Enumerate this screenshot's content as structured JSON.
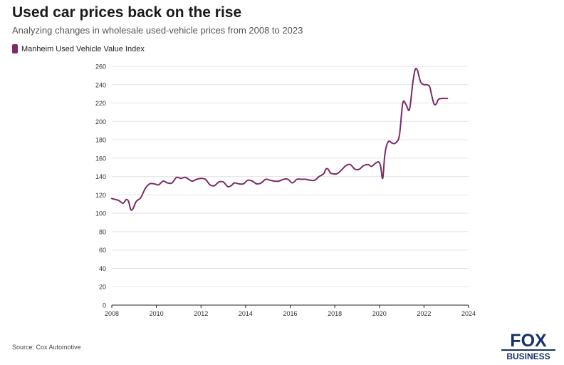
{
  "header": {
    "title": "Used car prices back on the rise",
    "subtitle": "Analyzing changes in wholesale used-vehicle prices from 2008 to 2023"
  },
  "legend": {
    "label": "Manheim Used Vehicle Value Index"
  },
  "footer": {
    "source": "Source: Cox Automotive"
  },
  "logo": {
    "top": "FOX",
    "bottom": "BUSINESS",
    "color": "#16306b"
  },
  "colors": {
    "series": "#7d2a66",
    "grid": "#e3e3e3",
    "axis": "#222222"
  },
  "chart_data": {
    "type": "line",
    "title": "Used car prices back on the rise",
    "xlabel": "",
    "ylabel": "",
    "xlim": [
      2008,
      2024
    ],
    "ylim": [
      0,
      260
    ],
    "xticks": [
      2008,
      2010,
      2012,
      2014,
      2016,
      2018,
      2020,
      2022,
      2024
    ],
    "yticks": [
      0,
      20,
      40,
      60,
      80,
      100,
      120,
      140,
      160,
      180,
      200,
      220,
      240,
      260
    ],
    "grid": true,
    "legend_position": "top-left",
    "series": [
      {
        "name": "Manheim Used Vehicle Value Index",
        "x": [
          2008.0,
          2008.3,
          2008.5,
          2008.65,
          2008.75,
          2008.85,
          2008.95,
          2009.1,
          2009.3,
          2009.5,
          2009.7,
          2009.9,
          2010.1,
          2010.3,
          2010.5,
          2010.7,
          2010.9,
          2011.1,
          2011.3,
          2011.6,
          2011.8,
          2012.0,
          2012.2,
          2012.4,
          2012.6,
          2012.8,
          2013.0,
          2013.2,
          2013.35,
          2013.5,
          2013.7,
          2013.9,
          2014.1,
          2014.3,
          2014.5,
          2014.7,
          2014.9,
          2015.1,
          2015.3,
          2015.5,
          2015.7,
          2015.9,
          2016.1,
          2016.3,
          2016.5,
          2016.7,
          2016.9,
          2017.1,
          2017.3,
          2017.5,
          2017.6,
          2017.7,
          2017.8,
          2017.9,
          2018.1,
          2018.3,
          2018.5,
          2018.7,
          2018.9,
          2019.1,
          2019.3,
          2019.5,
          2019.65,
          2019.8,
          2019.95,
          2020.05,
          2020.15,
          2020.25,
          2020.4,
          2020.6,
          2020.75,
          2020.9,
          2021.05,
          2021.2,
          2021.35,
          2021.5,
          2021.6,
          2021.7,
          2021.85,
          2022.0,
          2022.1,
          2022.25,
          2022.35,
          2022.45,
          2022.55,
          2022.65,
          2022.8,
          2022.95,
          2023.05
        ],
        "values": [
          116,
          114,
          111,
          115,
          113,
          104,
          105,
          113,
          117,
          127,
          132,
          132,
          131,
          135,
          133,
          133,
          139,
          138,
          139,
          135,
          137,
          138,
          137,
          131,
          130,
          134,
          134,
          129,
          130,
          133,
          132,
          132,
          136,
          135,
          132,
          133,
          137,
          136,
          135,
          135,
          137,
          137,
          133,
          137,
          137,
          137,
          136,
          136,
          140,
          143,
          148,
          148,
          144,
          143,
          143,
          147,
          152,
          153,
          148,
          148,
          152,
          153,
          151,
          154,
          156,
          152,
          138,
          165,
          178,
          176,
          177,
          185,
          220,
          218,
          213,
          242,
          256,
          256,
          243,
          240,
          240,
          238,
          228,
          219,
          219,
          224,
          225,
          225,
          225
        ]
      }
    ]
  }
}
